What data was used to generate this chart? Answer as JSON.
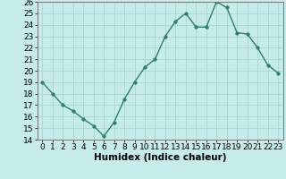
{
  "x": [
    0,
    1,
    2,
    3,
    4,
    5,
    6,
    7,
    8,
    9,
    10,
    11,
    12,
    13,
    14,
    15,
    16,
    17,
    18,
    19,
    20,
    21,
    22,
    23
  ],
  "y": [
    19,
    18,
    17,
    16.5,
    15.8,
    15.2,
    14.3,
    15.5,
    17.5,
    19,
    20.3,
    21,
    23,
    24.3,
    25,
    23.8,
    23.8,
    26,
    25.5,
    23.3,
    23.2,
    22,
    20.5,
    19.8
  ],
  "line_color": "#2e7d6d",
  "marker_color": "#2e7d6d",
  "bg_color": "#c5ecea",
  "grid_color": "#a8d8d4",
  "xlabel": "Humidex (Indice chaleur)",
  "ylim": [
    14,
    26
  ],
  "xlim": [
    -0.5,
    23.5
  ],
  "yticks": [
    14,
    15,
    16,
    17,
    18,
    19,
    20,
    21,
    22,
    23,
    24,
    25,
    26
  ],
  "xticks": [
    0,
    1,
    2,
    3,
    4,
    5,
    6,
    7,
    8,
    9,
    10,
    11,
    12,
    13,
    14,
    15,
    16,
    17,
    18,
    19,
    20,
    21,
    22,
    23
  ],
  "xlabel_fontsize": 7.5,
  "tick_fontsize": 6.5,
  "marker_size": 2.5,
  "line_width": 1.0
}
